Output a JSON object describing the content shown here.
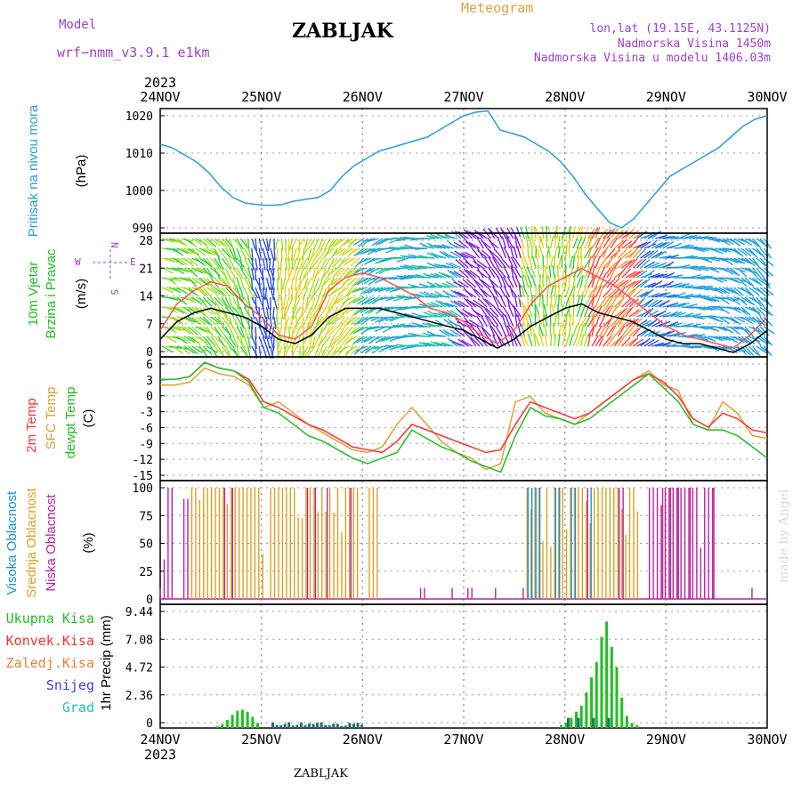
{
  "header": {
    "title": "ZABLJAK",
    "model_label": "Model",
    "model_name": "wrf−nmm_v3.9.1  e1km",
    "meteogram": "Meteogram",
    "info": [
      "lon,lat (19.15E, 43.1125N)",
      "Nadmorska Visina 1450m",
      "Nadmorska Visina u modelu 1406.03m"
    ],
    "year": "2023",
    "bottom_label": "ZABLJAK",
    "made_by": "made by Angel"
  },
  "colors": {
    "pressure": "#2a9de0",
    "temp2m": "#ff3030",
    "sfc": "#e0a030",
    "dew": "#20c020",
    "high": "#1890e0",
    "mid": "#e0a020",
    "low": "#c020a0",
    "total": "#20c020",
    "grid": "#999999"
  },
  "chart_data": {
    "type": "line",
    "x_ticks": [
      "24NOV",
      "25NOV",
      "26NOV",
      "27NOV",
      "28NOV",
      "29NOV",
      "30NOV"
    ],
    "panels": [
      {
        "id": "pressure",
        "ylabel": "(hPa)",
        "title": "Pritisak na nivou mora",
        "yticks": [
          "1020",
          "1010",
          "1000",
          "990"
        ],
        "ylim": [
          988,
          1023
        ],
        "series": [
          {
            "name": "pressure",
            "values": [
              1013,
              1012,
              1010,
              1008,
              1005,
              1001,
              998,
              996.5,
              996,
              995.8,
              996,
              997,
              997.5,
              998,
              1000,
              1004,
              1007,
              1009,
              1011,
              1012,
              1013,
              1014,
              1015,
              1017,
              1019,
              1021,
              1022,
              1022.3,
              1017,
              1016,
              1015,
              1013,
              1011,
              1008,
              1004,
              999,
              995,
              991,
              989.5,
              992,
              996,
              1000,
              1004,
              1006,
              1008,
              1010,
              1012,
              1015,
              1018,
              1020,
              1021
            ]
          }
        ]
      },
      {
        "id": "wind",
        "ylabel": "(m/s)",
        "title": [
          "10m Vjetar",
          "Brzina i Pravac"
        ],
        "yticks": [
          "28",
          "21",
          "14",
          "7",
          "0"
        ],
        "compass": [
          "N",
          "E",
          "W",
          "S"
        ],
        "ylim": [
          0,
          28
        ],
        "series": [
          {
            "name": "speed",
            "values": [
              4,
              8,
              10,
              11,
              10,
              9,
              7,
              4,
              3,
              5,
              9,
              11,
              11,
              11,
              10,
              9,
              8,
              7,
              6,
              4,
              2,
              4,
              7,
              9,
              11,
              12,
              10,
              9,
              8,
              6,
              4,
              3,
              3,
              2,
              1,
              3,
              6
            ]
          },
          {
            "name": "gust",
            "values": [
              6,
              12,
              15,
              17,
              16,
              12,
              9,
              5,
              4,
              7,
              15,
              18,
              19,
              18,
              16,
              14,
              11,
              10,
              8,
              5,
              3,
              6,
              12,
              16,
              18,
              20,
              18,
              16,
              13,
              10,
              7,
              5,
              4,
              3,
              2,
              5,
              9
            ]
          }
        ]
      },
      {
        "id": "temp",
        "ylabel": "(C)",
        "title": [
          "2m Temp",
          "SFC Temp",
          "dewpt Temp"
        ],
        "yticks": [
          "6",
          "3",
          "0",
          "-3",
          "-6",
          "-9",
          "-12",
          "-15"
        ],
        "ylim": [
          -15,
          7
        ],
        "series": [
          {
            "name": "2m Temp",
            "values": [
              3,
              3,
              3.5,
              6,
              5,
              4.5,
              3,
              -1,
              -2,
              -3.5,
              -5,
              -6,
              -7.5,
              -9,
              -9.5,
              -10,
              -8,
              -5,
              -6,
              -7,
              -8,
              -9,
              -10,
              -9.5,
              -5,
              -1,
              -2,
              -3,
              -4,
              -3,
              -1,
              1,
              3,
              4,
              2.5,
              0,
              -4,
              -5.5,
              -3,
              -4,
              -6,
              -6.5
            ]
          },
          {
            "name": "SFC Temp",
            "values": [
              2,
              2,
              2.5,
              5,
              4,
              3.5,
              2,
              -2,
              -1,
              -3,
              -5,
              -6.5,
              -8,
              -9.5,
              -10,
              -9,
              -5,
              -2,
              -5,
              -8,
              -10,
              -11,
              -13,
              -12,
              -1,
              0,
              -3,
              -4,
              -5,
              -3,
              -1,
              1,
              3,
              4.5,
              2,
              1,
              -5,
              -6,
              -1,
              -3,
              -7,
              -7.5
            ]
          },
          {
            "name": "dewpt Temp",
            "values": [
              3,
              3,
              3.5,
              6,
              5,
              4.5,
              2.5,
              -2,
              -3,
              -5,
              -7,
              -8,
              -9.5,
              -11,
              -12,
              -11,
              -10,
              -6,
              -7.5,
              -9,
              -10,
              -11.5,
              -12.5,
              -13.5,
              -7,
              -2,
              -3.5,
              -4,
              -5,
              -4,
              -2,
              0,
              2,
              4,
              1.5,
              -1,
              -5,
              -6,
              -6,
              -7,
              -9,
              -11
            ]
          }
        ]
      },
      {
        "id": "cloud",
        "ylabel": "(%)",
        "title": [
          "Visoka Oblacnost",
          "Srednja Oblacnost",
          "Niska Oblacnost"
        ],
        "yticks": [
          "100",
          "75",
          "50",
          "25",
          "0"
        ],
        "ylim": [
          0,
          100
        ]
      },
      {
        "id": "precip",
        "ylabel": "1hr Precip (mm)",
        "title": [
          "Ukupna Kisa",
          "Konvek.Kisa",
          "Zaledj.Kisa",
          "Snijeg",
          "Grad"
        ],
        "yticks": [
          "9.44",
          "7.08",
          "4.72",
          "2.36",
          "0"
        ],
        "ylim": [
          0,
          11.5
        ]
      }
    ]
  }
}
